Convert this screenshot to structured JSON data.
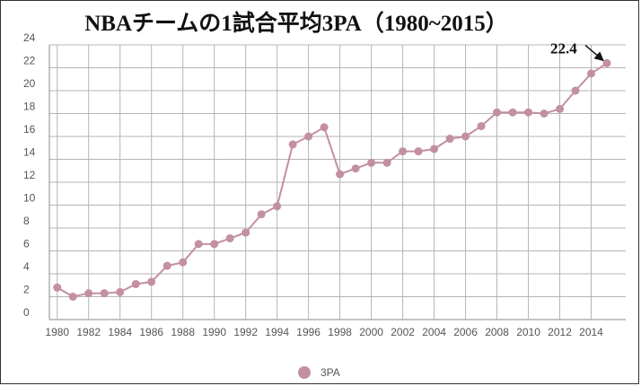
{
  "chart_data": {
    "type": "line",
    "title": "NBAチームの1試合平均3PA（1980~2015）",
    "xlabel": "",
    "ylabel": "",
    "x": [
      1980,
      1981,
      1982,
      1983,
      1984,
      1985,
      1986,
      1987,
      1988,
      1989,
      1990,
      1991,
      1992,
      1993,
      1994,
      1995,
      1996,
      1997,
      1998,
      1999,
      2000,
      2001,
      2002,
      2003,
      2004,
      2005,
      2006,
      2007,
      2008,
      2009,
      2010,
      2011,
      2012,
      2013,
      2014,
      2015
    ],
    "series": [
      {
        "name": "3PA",
        "values": [
          2.8,
          2.0,
          2.3,
          2.3,
          2.4,
          3.1,
          3.3,
          4.7,
          5.0,
          6.6,
          6.6,
          7.1,
          7.6,
          9.2,
          9.9,
          15.3,
          16.0,
          16.8,
          12.7,
          13.2,
          13.7,
          13.7,
          14.7,
          14.7,
          14.9,
          15.8,
          16.0,
          16.9,
          18.1,
          18.1,
          18.1,
          18.0,
          18.4,
          20.0,
          21.5,
          22.4
        ],
        "color": "#c38fa3"
      }
    ],
    "xlim": [
      1980,
      2015
    ],
    "ylim": [
      0,
      24
    ],
    "x_ticks": [
      "1980",
      "1982",
      "1984",
      "1986",
      "1988",
      "1990",
      "1992",
      "1994",
      "1996",
      "1998",
      "2000",
      "2002",
      "2004",
      "2006",
      "2008",
      "2010",
      "2012",
      "2014"
    ],
    "y_ticks": [
      "0",
      "2",
      "4",
      "6",
      "8",
      "10",
      "12",
      "14",
      "16",
      "18",
      "20",
      "22",
      "24"
    ],
    "grid": true,
    "legend_position": "bottom-center",
    "annotation": {
      "text": "22.4",
      "year": 2015,
      "value": 22.4
    }
  }
}
